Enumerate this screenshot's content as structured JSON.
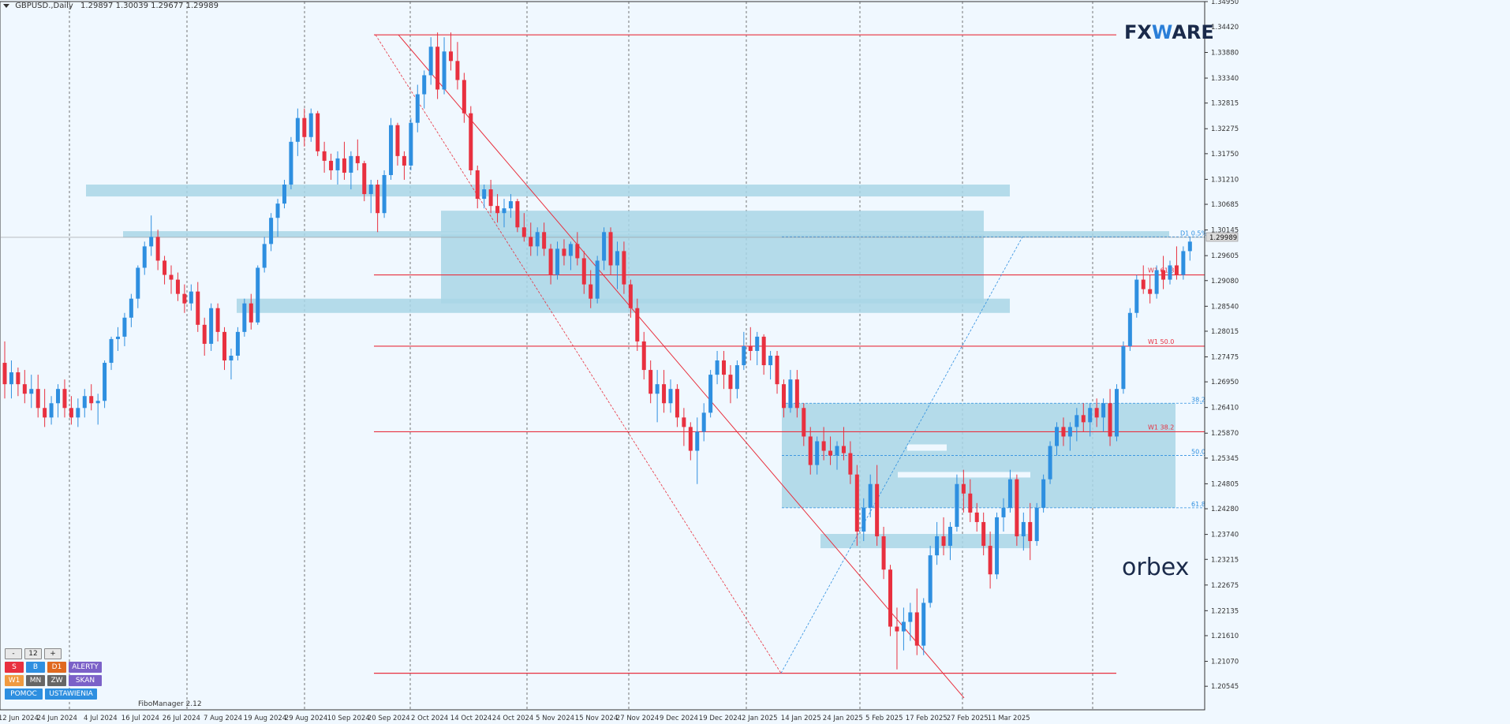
{
  "header": {
    "symbol": "GBPUSD.,Daily",
    "ohlc": "1.29897 1.30039 1.29677 1.29989"
  },
  "colors": {
    "bull": "#2e8fe0",
    "bear": "#e8303f",
    "zone": "#a9d6e6",
    "level": "#e8303f",
    "grid": "#555555",
    "fib": "#2e8fe0",
    "brand": "#1a2a4a",
    "accent": "#2b7fd8"
  },
  "brand": {
    "fxware_a": "FX",
    "fxware_b": "W",
    "fxware_c": "ARE",
    "orbex": "orbex"
  },
  "panel": {
    "minus": "-",
    "value": "12",
    "plus": "+",
    "row1": [
      "S",
      "B",
      "D1",
      "ALERTY"
    ],
    "row2": [
      "W1",
      "MN",
      "ZW",
      "SKAN"
    ],
    "row3": [
      "POMOC",
      "USTAWIENIA"
    ]
  },
  "footer_label": "FiboManager 2.12",
  "chart_data": {
    "type": "candlestick",
    "title": "GBPUSD.,Daily",
    "ylim": [
      1.2005,
      1.3495
    ],
    "y_ticks": [
      "1.34950",
      "1.34420",
      "1.33880",
      "1.33340",
      "1.32815",
      "1.32275",
      "1.31750",
      "1.31210",
      "1.30685",
      "1.30145",
      "1.29605",
      "1.29080",
      "1.28540",
      "1.28015",
      "1.27475",
      "1.26950",
      "1.26410",
      "1.25870",
      "1.25345",
      "1.24805",
      "1.24280",
      "1.23740",
      "1.23215",
      "1.22675",
      "1.22135",
      "1.21610",
      "1.21070",
      "1.20545"
    ],
    "x_ticks": [
      "12 Jun 2024",
      "24 Jun 2024",
      "4 Jul 2024",
      "16 Jul 2024",
      "26 Jul 2024",
      "7 Aug 2024",
      "19 Aug 2024",
      "29 Aug 2024",
      "10 Sep 2024",
      "20 Sep 2024",
      "2 Oct 2024",
      "14 Oct 2024",
      "24 Oct 2024",
      "5 Nov 2024",
      "15 Nov 2024",
      "27 Nov 2024",
      "9 Dec 2024",
      "19 Dec 2024",
      "2 Jan 2025",
      "14 Jan 2025",
      "24 Jan 2025",
      "5 Feb 2025",
      "17 Feb 2025",
      "27 Feb 2025",
      "11 Mar 2025"
    ],
    "current_price": "1.29989",
    "ohlc": [
      [
        1.2735,
        1.278,
        1.266,
        1.269
      ],
      [
        1.269,
        1.274,
        1.266,
        1.2715
      ],
      [
        1.2715,
        1.2725,
        1.2665,
        1.269
      ],
      [
        1.269,
        1.272,
        1.265,
        1.267
      ],
      [
        1.267,
        1.271,
        1.264,
        1.268
      ],
      [
        1.268,
        1.271,
        1.262,
        1.264
      ],
      [
        1.264,
        1.268,
        1.26,
        1.262
      ],
      [
        1.262,
        1.2665,
        1.2605,
        1.265
      ],
      [
        1.265,
        1.269,
        1.262,
        1.268
      ],
      [
        1.268,
        1.27,
        1.262,
        1.264
      ],
      [
        1.264,
        1.2665,
        1.2605,
        1.262
      ],
      [
        1.262,
        1.266,
        1.26,
        1.264
      ],
      [
        1.264,
        1.268,
        1.262,
        1.2665
      ],
      [
        1.2665,
        1.269,
        1.2635,
        1.265
      ],
      [
        1.265,
        1.267,
        1.2605,
        1.2655
      ],
      [
        1.2655,
        1.274,
        1.264,
        1.2735
      ],
      [
        1.2735,
        1.279,
        1.272,
        1.2785
      ],
      [
        1.2785,
        1.281,
        1.276,
        1.279
      ],
      [
        1.279,
        1.284,
        1.277,
        1.283
      ],
      [
        1.283,
        1.288,
        1.281,
        1.287
      ],
      [
        1.287,
        1.294,
        1.285,
        1.2935
      ],
      [
        1.2935,
        1.299,
        1.292,
        1.298
      ],
      [
        1.298,
        1.3045,
        1.296,
        1.3
      ],
      [
        1.3,
        1.3015,
        1.293,
        1.295
      ],
      [
        1.295,
        1.296,
        1.29,
        1.292
      ],
      [
        1.292,
        1.294,
        1.288,
        1.291
      ],
      [
        1.291,
        1.2925,
        1.2865,
        1.288
      ],
      [
        1.288,
        1.29,
        1.284,
        1.286
      ],
      [
        1.286,
        1.29,
        1.2845,
        1.2885
      ],
      [
        1.2885,
        1.2905,
        1.28,
        1.2815
      ],
      [
        1.2815,
        1.283,
        1.275,
        1.2775
      ],
      [
        1.2775,
        1.286,
        1.276,
        1.285
      ],
      [
        1.285,
        1.286,
        1.278,
        1.28
      ],
      [
        1.28,
        1.281,
        1.272,
        1.274
      ],
      [
        1.274,
        1.2765,
        1.27,
        1.275
      ],
      [
        1.275,
        1.281,
        1.274,
        1.28
      ],
      [
        1.28,
        1.287,
        1.279,
        1.286
      ],
      [
        1.286,
        1.288,
        1.2805,
        1.282
      ],
      [
        1.282,
        1.294,
        1.2815,
        1.2935
      ],
      [
        1.2935,
        1.3,
        1.2925,
        1.2985
      ],
      [
        1.2985,
        1.305,
        1.297,
        1.304
      ],
      [
        1.304,
        1.308,
        1.3,
        1.307
      ],
      [
        1.307,
        1.312,
        1.306,
        1.311
      ],
      [
        1.311,
        1.321,
        1.31,
        1.32
      ],
      [
        1.32,
        1.327,
        1.317,
        1.325
      ],
      [
        1.325,
        1.327,
        1.319,
        1.321
      ],
      [
        1.321,
        1.327,
        1.32,
        1.326
      ],
      [
        1.326,
        1.3265,
        1.317,
        1.318
      ],
      [
        1.318,
        1.32,
        1.3135,
        1.316
      ],
      [
        1.316,
        1.3175,
        1.312,
        1.314
      ],
      [
        1.314,
        1.318,
        1.311,
        1.3165
      ],
      [
        1.3165,
        1.32,
        1.312,
        1.3135
      ],
      [
        1.3135,
        1.318,
        1.31,
        1.317
      ],
      [
        1.317,
        1.3205,
        1.314,
        1.3155
      ],
      [
        1.3155,
        1.316,
        1.3075,
        1.309
      ],
      [
        1.309,
        1.312,
        1.305,
        1.311
      ],
      [
        1.311,
        1.312,
        1.301,
        1.305
      ],
      [
        1.305,
        1.314,
        1.304,
        1.313
      ],
      [
        1.313,
        1.325,
        1.312,
        1.3235
      ],
      [
        1.3235,
        1.324,
        1.315,
        1.317
      ],
      [
        1.317,
        1.318,
        1.312,
        1.315
      ],
      [
        1.315,
        1.325,
        1.314,
        1.324
      ],
      [
        1.324,
        1.332,
        1.322,
        1.33
      ],
      [
        1.33,
        1.335,
        1.327,
        1.334
      ],
      [
        1.334,
        1.342,
        1.332,
        1.34
      ],
      [
        1.34,
        1.343,
        1.329,
        1.331
      ],
      [
        1.331,
        1.342,
        1.33,
        1.339
      ],
      [
        1.339,
        1.343,
        1.335,
        1.337
      ],
      [
        1.337,
        1.341,
        1.331,
        1.333
      ],
      [
        1.333,
        1.3345,
        1.324,
        1.326
      ],
      [
        1.326,
        1.3275,
        1.313,
        1.314
      ],
      [
        1.314,
        1.315,
        1.306,
        1.308
      ],
      [
        1.308,
        1.311,
        1.306,
        1.31
      ],
      [
        1.31,
        1.312,
        1.305,
        1.3065
      ],
      [
        1.3065,
        1.309,
        1.303,
        1.305
      ],
      [
        1.305,
        1.308,
        1.302,
        1.306
      ],
      [
        1.306,
        1.309,
        1.304,
        1.3075
      ],
      [
        1.3075,
        1.308,
        1.301,
        1.302
      ],
      [
        1.302,
        1.305,
        1.299,
        1.3
      ],
      [
        1.3,
        1.303,
        1.296,
        1.298
      ],
      [
        1.298,
        1.302,
        1.296,
        1.301
      ],
      [
        1.301,
        1.303,
        1.296,
        1.2975
      ],
      [
        1.2975,
        1.2985,
        1.29,
        1.292
      ],
      [
        1.292,
        1.299,
        1.291,
        1.2975
      ],
      [
        1.2975,
        1.2995,
        1.294,
        1.296
      ],
      [
        1.296,
        1.299,
        1.293,
        1.2985
      ],
      [
        1.2985,
        1.301,
        1.294,
        1.2955
      ],
      [
        1.2955,
        1.297,
        1.288,
        1.29
      ],
      [
        1.29,
        1.293,
        1.285,
        1.287
      ],
      [
        1.287,
        1.296,
        1.286,
        1.295
      ],
      [
        1.295,
        1.302,
        1.293,
        1.301
      ],
      [
        1.301,
        1.302,
        1.292,
        1.294
      ],
      [
        1.294,
        1.299,
        1.289,
        1.297
      ],
      [
        1.297,
        1.299,
        1.288,
        1.29
      ],
      [
        1.29,
        1.291,
        1.283,
        1.285
      ],
      [
        1.285,
        1.287,
        1.276,
        1.278
      ],
      [
        1.278,
        1.28,
        1.27,
        1.272
      ],
      [
        1.272,
        1.274,
        1.265,
        1.267
      ],
      [
        1.267,
        1.272,
        1.261,
        1.269
      ],
      [
        1.269,
        1.272,
        1.263,
        1.265
      ],
      [
        1.265,
        1.27,
        1.263,
        1.268
      ],
      [
        1.268,
        1.269,
        1.26,
        1.262
      ],
      [
        1.262,
        1.264,
        1.256,
        1.26
      ],
      [
        1.26,
        1.261,
        1.253,
        1.255
      ],
      [
        1.255,
        1.262,
        1.248,
        1.259
      ],
      [
        1.259,
        1.265,
        1.257,
        1.263
      ],
      [
        1.263,
        1.272,
        1.262,
        1.271
      ],
      [
        1.271,
        1.276,
        1.269,
        1.274
      ],
      [
        1.274,
        1.276,
        1.268,
        1.271
      ],
      [
        1.271,
        1.273,
        1.265,
        1.268
      ],
      [
        1.268,
        1.274,
        1.266,
        1.273
      ],
      [
        1.273,
        1.28,
        1.272,
        1.277
      ],
      [
        1.277,
        1.281,
        1.274,
        1.276
      ],
      [
        1.276,
        1.28,
        1.273,
        1.279
      ],
      [
        1.279,
        1.2795,
        1.271,
        1.273
      ],
      [
        1.273,
        1.276,
        1.27,
        1.275
      ],
      [
        1.275,
        1.276,
        1.267,
        1.269
      ],
      [
        1.269,
        1.27,
        1.262,
        1.264
      ],
      [
        1.264,
        1.272,
        1.263,
        1.27
      ],
      [
        1.27,
        1.272,
        1.262,
        1.264
      ],
      [
        1.264,
        1.265,
        1.256,
        1.258
      ],
      [
        1.258,
        1.26,
        1.25,
        1.252
      ],
      [
        1.252,
        1.258,
        1.25,
        1.257
      ],
      [
        1.257,
        1.26,
        1.253,
        1.255
      ],
      [
        1.255,
        1.258,
        1.252,
        1.254
      ],
      [
        1.254,
        1.257,
        1.251,
        1.256
      ],
      [
        1.256,
        1.26,
        1.253,
        1.2545
      ],
      [
        1.2545,
        1.257,
        1.248,
        1.25
      ],
      [
        1.25,
        1.252,
        1.235,
        1.238
      ],
      [
        1.238,
        1.245,
        1.236,
        1.243
      ],
      [
        1.243,
        1.25,
        1.241,
        1.248
      ],
      [
        1.248,
        1.252,
        1.235,
        1.237
      ],
      [
        1.237,
        1.239,
        1.228,
        1.23
      ],
      [
        1.23,
        1.231,
        1.216,
        1.218
      ],
      [
        1.218,
        1.222,
        1.209,
        1.217
      ],
      [
        1.217,
        1.222,
        1.213,
        1.219
      ],
      [
        1.219,
        1.223,
        1.215,
        1.221
      ],
      [
        1.221,
        1.226,
        1.212,
        1.214
      ],
      [
        1.214,
        1.224,
        1.212,
        1.223
      ],
      [
        1.223,
        1.235,
        1.222,
        1.233
      ],
      [
        1.233,
        1.24,
        1.231,
        1.237
      ],
      [
        1.237,
        1.241,
        1.233,
        1.235
      ],
      [
        1.235,
        1.24,
        1.232,
        1.239
      ],
      [
        1.239,
        1.25,
        1.238,
        1.248
      ],
      [
        1.248,
        1.251,
        1.242,
        1.246
      ],
      [
        1.246,
        1.249,
        1.24,
        1.242
      ],
      [
        1.242,
        1.244,
        1.238,
        1.24
      ],
      [
        1.24,
        1.242,
        1.233,
        1.235
      ],
      [
        1.235,
        1.238,
        1.226,
        1.229
      ],
      [
        1.229,
        1.242,
        1.228,
        1.241
      ],
      [
        1.241,
        1.245,
        1.238,
        1.243
      ],
      [
        1.243,
        1.251,
        1.242,
        1.249
      ],
      [
        1.249,
        1.25,
        1.235,
        1.237
      ],
      [
        1.237,
        1.242,
        1.234,
        1.24
      ],
      [
        1.24,
        1.244,
        1.232,
        1.236
      ],
      [
        1.236,
        1.244,
        1.235,
        1.243
      ],
      [
        1.243,
        1.25,
        1.242,
        1.249
      ],
      [
        1.249,
        1.257,
        1.248,
        1.256
      ],
      [
        1.256,
        1.261,
        1.254,
        1.26
      ],
      [
        1.26,
        1.262,
        1.256,
        1.258
      ],
      [
        1.258,
        1.261,
        1.255,
        1.26
      ],
      [
        1.26,
        1.264,
        1.257,
        1.2625
      ],
      [
        1.2625,
        1.265,
        1.259,
        1.261
      ],
      [
        1.261,
        1.265,
        1.258,
        1.264
      ],
      [
        1.264,
        1.266,
        1.26,
        1.262
      ],
      [
        1.262,
        1.266,
        1.259,
        1.265
      ],
      [
        1.265,
        1.268,
        1.256,
        1.258
      ],
      [
        1.258,
        1.269,
        1.257,
        1.268
      ],
      [
        1.268,
        1.278,
        1.267,
        1.277
      ],
      [
        1.277,
        1.285,
        1.276,
        1.284
      ],
      [
        1.284,
        1.292,
        1.283,
        1.291
      ],
      [
        1.291,
        1.294,
        1.288,
        1.289
      ],
      [
        1.289,
        1.292,
        1.286,
        1.288
      ],
      [
        1.288,
        1.294,
        1.287,
        1.293
      ],
      [
        1.293,
        1.296,
        1.289,
        1.291
      ],
      [
        1.291,
        1.295,
        1.29,
        1.294
      ],
      [
        1.294,
        1.298,
        1.291,
        1.292
      ],
      [
        1.292,
        1.298,
        1.291,
        1.297
      ],
      [
        1.297,
        1.3,
        1.295,
        1.299
      ]
    ],
    "zones": [
      {
        "from": 1.3085,
        "to": 1.311,
        "start": 109,
        "end": 1280
      },
      {
        "from": 1.301,
        "to": 1.3055,
        "start": 559,
        "end": 1247
      },
      {
        "from": 1.2999,
        "to": 1.3012,
        "start": 156,
        "end": 1482
      },
      {
        "from": 1.286,
        "to": 1.3005,
        "start": 559,
        "end": 1247
      },
      {
        "from": 1.284,
        "to": 1.287,
        "start": 300,
        "end": 1280
      },
      {
        "from": 1.243,
        "to": 1.265,
        "start": 991,
        "end": 1490
      },
      {
        "from": 1.2345,
        "to": 1.2375,
        "start": 1040,
        "end": 1306
      }
    ],
    "levels": [
      {
        "label": "",
        "price": 1.3425
      },
      {
        "label": "W1 61.8",
        "price": 1.292
      },
      {
        "label": "W1 50.0",
        "price": 1.277
      },
      {
        "label": "W1 38.2",
        "price": 1.259
      },
      {
        "label": "",
        "price": 1.2082
      }
    ],
    "fib_levels": [
      {
        "label": "D1 0.5%",
        "price": 1.3
      },
      {
        "label": "38.2",
        "price": 1.265
      },
      {
        "label": "50.0",
        "price": 1.254
      },
      {
        "label": "61.8",
        "price": 1.243
      }
    ]
  }
}
